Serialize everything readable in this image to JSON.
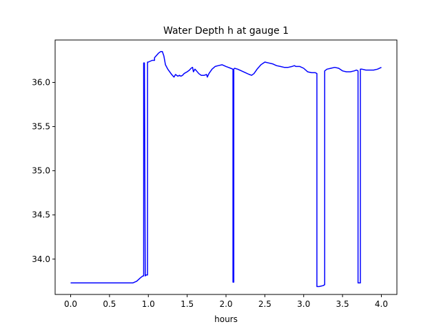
{
  "chart_data": {
    "type": "line",
    "title": "Water Depth h at gauge 1",
    "xlabel": "hours",
    "ylabel": "",
    "xlim": [
      -0.2,
      4.2
    ],
    "ylim": [
      33.6,
      36.48
    ],
    "x_ticks": [
      0.0,
      0.5,
      1.0,
      1.5,
      2.0,
      2.5,
      3.0,
      3.5,
      4.0
    ],
    "x_tick_labels": [
      "0.0",
      "0.5",
      "1.0",
      "1.5",
      "2.0",
      "2.5",
      "3.0",
      "3.5",
      "4.0"
    ],
    "y_ticks": [
      34.0,
      34.5,
      35.0,
      35.5,
      36.0
    ],
    "y_tick_labels": [
      "34.0",
      "34.5",
      "35.0",
      "35.5",
      "36.0"
    ],
    "grid": false,
    "series": [
      {
        "color": "#0000ff",
        "x": [
          0.0,
          0.3,
          0.6,
          0.8,
          0.85,
          0.9,
          0.93,
          0.94,
          0.94,
          0.95,
          0.96,
          0.97,
          0.99,
          0.99,
          1.0,
          1.05,
          1.08,
          1.08,
          1.1,
          1.13,
          1.16,
          1.18,
          1.2,
          1.22,
          1.25,
          1.3,
          1.33,
          1.35,
          1.38,
          1.4,
          1.42,
          1.44,
          1.46,
          1.5,
          1.53,
          1.55,
          1.57,
          1.58,
          1.6,
          1.62,
          1.65,
          1.68,
          1.72,
          1.75,
          1.76,
          1.78,
          1.82,
          1.86,
          1.9,
          1.95,
          2.0,
          2.03,
          2.06,
          2.09,
          2.09,
          2.1,
          2.1,
          2.11,
          2.15,
          2.2,
          2.25,
          2.3,
          2.33,
          2.36,
          2.4,
          2.45,
          2.5,
          2.55,
          2.6,
          2.65,
          2.7,
          2.75,
          2.8,
          2.85,
          2.88,
          2.9,
          2.95,
          3.0,
          3.05,
          3.1,
          3.15,
          3.17,
          3.17,
          3.2,
          3.25,
          3.27,
          3.27,
          3.3,
          3.35,
          3.4,
          3.45,
          3.5,
          3.55,
          3.6,
          3.65,
          3.68,
          3.7,
          3.7,
          3.71,
          3.73,
          3.73,
          3.74,
          3.75,
          3.8,
          3.85,
          3.9,
          3.95,
          4.0
        ],
        "y": [
          33.73,
          33.73,
          33.73,
          33.73,
          33.75,
          33.79,
          33.81,
          33.81,
          36.22,
          36.22,
          33.81,
          33.82,
          33.82,
          36.23,
          36.23,
          36.25,
          36.25,
          36.28,
          36.3,
          36.33,
          36.35,
          36.35,
          36.3,
          36.2,
          36.15,
          36.09,
          36.06,
          36.09,
          36.07,
          36.08,
          36.07,
          36.08,
          36.1,
          36.12,
          36.14,
          36.16,
          36.17,
          36.12,
          36.15,
          36.13,
          36.1,
          36.08,
          36.08,
          36.09,
          36.06,
          36.1,
          36.15,
          36.18,
          36.19,
          36.2,
          36.18,
          36.17,
          36.16,
          36.15,
          33.74,
          33.74,
          36.15,
          36.16,
          36.15,
          36.13,
          36.11,
          36.09,
          36.08,
          36.1,
          36.15,
          36.2,
          36.23,
          36.22,
          36.21,
          36.19,
          36.18,
          36.17,
          36.17,
          36.18,
          36.19,
          36.18,
          36.18,
          36.16,
          36.12,
          36.11,
          36.11,
          36.1,
          33.69,
          33.69,
          33.7,
          33.71,
          36.13,
          36.15,
          36.16,
          36.17,
          36.16,
          36.13,
          36.12,
          36.12,
          36.13,
          36.14,
          36.13,
          33.73,
          33.73,
          33.73,
          36.15,
          36.15,
          36.15,
          36.14,
          36.14,
          36.14,
          36.15,
          36.17
        ]
      }
    ]
  }
}
